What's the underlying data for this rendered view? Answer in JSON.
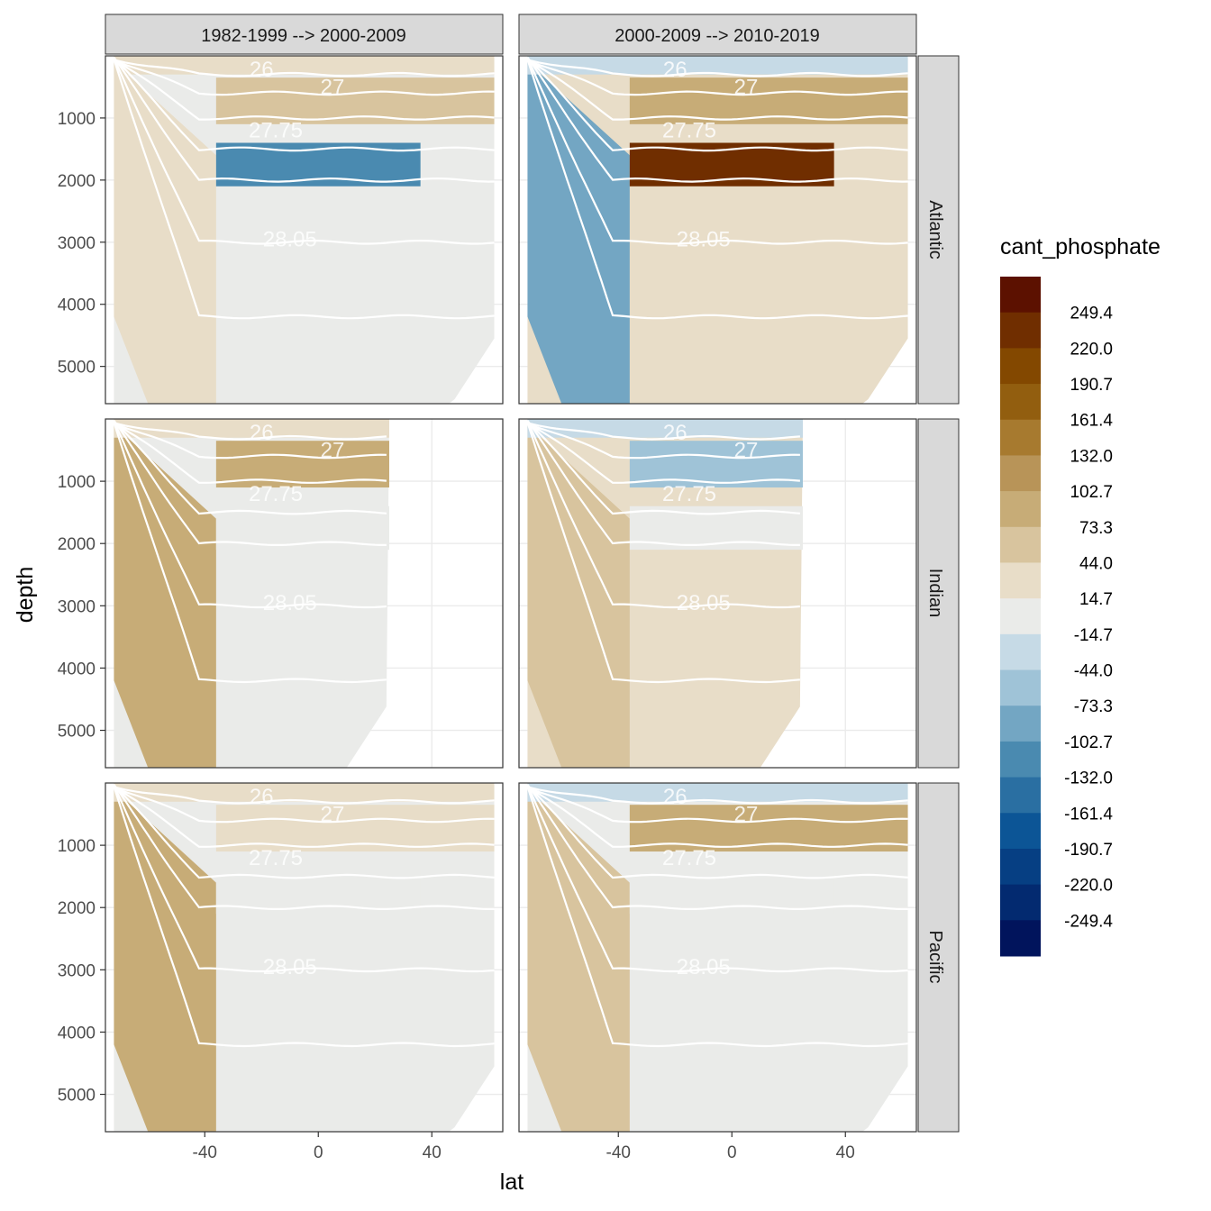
{
  "chart_data": {
    "type": "heatmap",
    "xlabel": "lat",
    "ylabel": "depth",
    "legend_title": "cant_phosphate",
    "x_ticks": [
      -40,
      0,
      40
    ],
    "y_ticks": [
      1000,
      2000,
      3000,
      4000,
      5000
    ],
    "xlim": [
      -75,
      65
    ],
    "ylim": [
      5600,
      0
    ],
    "columns": [
      "1982-1999 --> 2000-2009",
      "2000-2009 --> 2010-2019"
    ],
    "rows": [
      "Atlantic",
      "Indian",
      "Pacific"
    ],
    "isopycnal_labels": [
      "26",
      "27",
      "27.75",
      "28.05"
    ],
    "breaks": [
      "249.4",
      "220.0",
      "190.7",
      "161.4",
      "132.0",
      "102.7",
      "73.3",
      "44.0",
      "14.7",
      "-14.7",
      "-44.0",
      "-73.3",
      "-102.7",
      "-132.0",
      "-161.4",
      "-190.7",
      "-220.0",
      "-249.4"
    ],
    "colors": [
      "#5c1100",
      "#702e00",
      "#834800",
      "#925e0f",
      "#a77a2f",
      "#b89458",
      "#c7ac77",
      "#d8c49e",
      "#e8ddc8",
      "#eaebe9",
      "#c6dae6",
      "#9fc3d7",
      "#73a6c3",
      "#4a8ab0",
      "#2a6fa2",
      "#0c5596",
      "#063f83",
      "#032a70",
      "#01145c"
    ],
    "layer_values": {
      "Atlantic": {
        "1982-1999 --> 2000-2009": {
          "surface": 30,
          "intermediate": 60,
          "upper_deep": -120,
          "deep": 0,
          "south_deep": 40
        },
        "2000-2009 --> 2010-2019": {
          "surface": -30,
          "intermediate": 80,
          "upper_deep": 230,
          "deep": 40,
          "south_deep": -100
        }
      },
      "Indian": {
        "1982-1999 --> 2000-2009": {
          "surface": 20,
          "intermediate": 80,
          "upper_deep": 0,
          "deep": 0,
          "south_deep": 90
        },
        "2000-2009 --> 2010-2019": {
          "surface": -40,
          "intermediate": -60,
          "upper_deep": 0,
          "deep": 20,
          "south_deep": 60
        }
      },
      "Pacific": {
        "1982-1999 --> 2000-2009": {
          "surface": 20,
          "intermediate": 40,
          "upper_deep": 0,
          "deep": 0,
          "south_deep": 90
        },
        "2000-2009 --> 2010-2019": {
          "surface": -20,
          "intermediate": 80,
          "upper_deep": 0,
          "deep": 0,
          "south_deep": 60
        }
      }
    }
  }
}
